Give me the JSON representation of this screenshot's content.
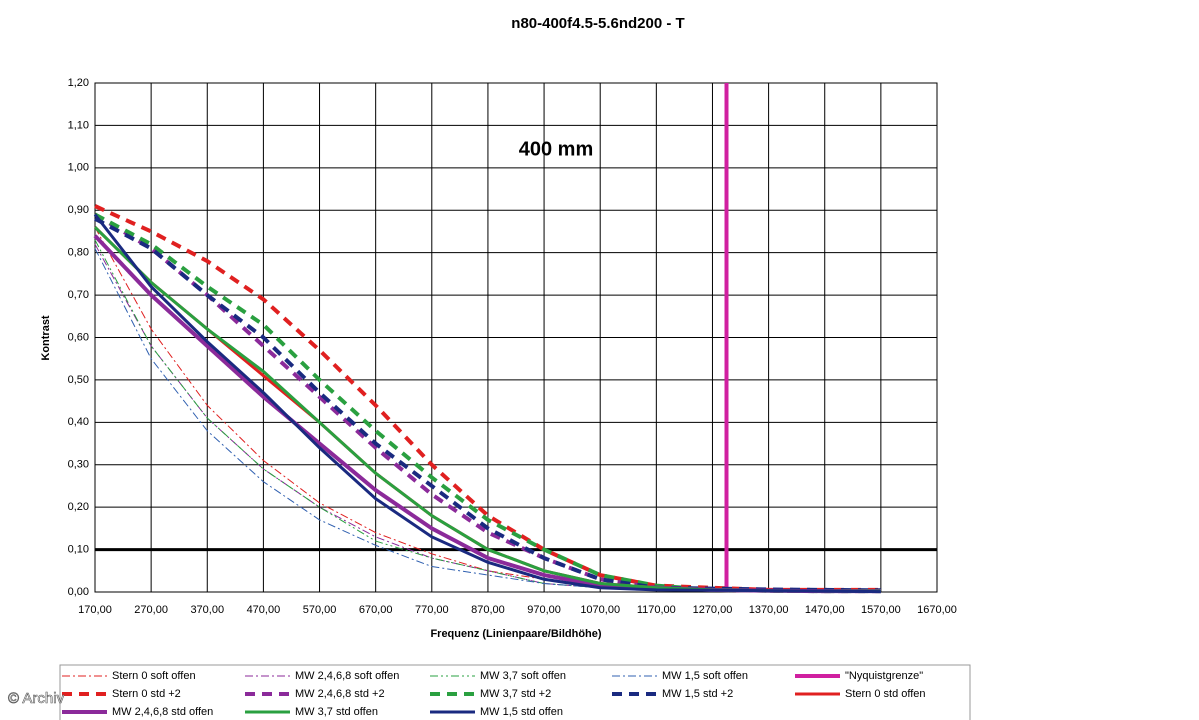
{
  "chart_data": {
    "type": "line",
    "title": "n80-400f4.5-5.6nd200 - T",
    "annotation": "400 mm",
    "x_label": "Frequenz (Linienpaare/Bildhöhe)",
    "y_label": "Kontrast",
    "watermark": "© Archiv",
    "x": [
      170,
      270,
      370,
      470,
      570,
      670,
      770,
      870,
      970,
      1070,
      1170,
      1270,
      1370,
      1470,
      1570
    ],
    "xlim": [
      170,
      1670
    ],
    "ylim": [
      0,
      1.2
    ],
    "xticks": [
      {
        "value": 170,
        "label": "170,00"
      },
      {
        "value": 270,
        "label": "270,00"
      },
      {
        "value": 370,
        "label": "370,00"
      },
      {
        "value": 470,
        "label": "470,00"
      },
      {
        "value": 570,
        "label": "570,00"
      },
      {
        "value": 670,
        "label": "670,00"
      },
      {
        "value": 770,
        "label": "770,00"
      },
      {
        "value": 870,
        "label": "870,00"
      },
      {
        "value": 970,
        "label": "970,00"
      },
      {
        "value": 1070,
        "label": "1070,00"
      },
      {
        "value": 1170,
        "label": "1170,00"
      },
      {
        "value": 1270,
        "label": "1270,00"
      },
      {
        "value": 1370,
        "label": "1370,00"
      },
      {
        "value": 1470,
        "label": "1470,00"
      },
      {
        "value": 1570,
        "label": "1570,00"
      },
      {
        "value": 1670,
        "label": "1670,00"
      }
    ],
    "yticks": [
      {
        "value": 0,
        "label": "0,00"
      },
      {
        "value": 0.1,
        "label": "0,10"
      },
      {
        "value": 0.2,
        "label": "0,20"
      },
      {
        "value": 0.3,
        "label": "0,30"
      },
      {
        "value": 0.4,
        "label": "0,40"
      },
      {
        "value": 0.5,
        "label": "0,50"
      },
      {
        "value": 0.6,
        "label": "0,60"
      },
      {
        "value": 0.7,
        "label": "0,70"
      },
      {
        "value": 0.8,
        "label": "0,80"
      },
      {
        "value": 0.9,
        "label": "0,90"
      },
      {
        "value": 1.0,
        "label": "1,00"
      },
      {
        "value": 1.1,
        "label": "1,10"
      },
      {
        "value": 1.2,
        "label": "1,20"
      }
    ],
    "grid": true,
    "hline": {
      "value": 0.1,
      "color": "#000000"
    },
    "series": [
      {
        "name": "Stern 0 soft offen",
        "color": "#e02020",
        "dash": "dashdot",
        "width": 1,
        "values": [
          0.86,
          0.62,
          0.44,
          0.31,
          0.21,
          0.14,
          0.09,
          0.05,
          0.03,
          0.01,
          0.005,
          0.003,
          0.002,
          0.001,
          0.001
        ]
      },
      {
        "name": "MW 2,4,6,8 soft offen",
        "color": "#8b2a9a",
        "dash": "dashdot",
        "width": 1,
        "values": [
          0.82,
          0.58,
          0.41,
          0.29,
          0.2,
          0.13,
          0.08,
          0.05,
          0.02,
          0.01,
          0.005,
          0.003,
          0.002,
          0.001,
          0.001
        ]
      },
      {
        "name": "MW 3,7 soft offen",
        "color": "#2aa040",
        "dash": "dashdotdot",
        "width": 1,
        "values": [
          0.83,
          0.58,
          0.41,
          0.29,
          0.2,
          0.12,
          0.08,
          0.05,
          0.02,
          0.01,
          0.005,
          0.003,
          0.002,
          0.001,
          0.001
        ]
      },
      {
        "name": "MW 1,5 soft offen",
        "color": "#3060b0",
        "dash": "dashdot",
        "width": 1,
        "values": [
          0.81,
          0.55,
          0.38,
          0.26,
          0.17,
          0.11,
          0.06,
          0.04,
          0.02,
          0.01,
          0.005,
          0.003,
          0.002,
          0.001,
          0.001
        ]
      },
      {
        "name": "\"Nyquistgrenze\"",
        "color": "#d020a0",
        "dash": "solid",
        "width": 4,
        "x": [
          1295,
          1295
        ],
        "values": [
          0,
          1.2
        ]
      },
      {
        "name": "Stern 0 std +2",
        "color": "#e02020",
        "dash": "dash",
        "width": 4,
        "values": [
          0.91,
          0.85,
          0.78,
          0.69,
          0.57,
          0.44,
          0.3,
          0.18,
          0.1,
          0.04,
          0.015,
          0.01,
          0.005,
          0.005,
          0.005
        ]
      },
      {
        "name": "MW 2,4,6,8 std +2",
        "color": "#8b2a9a",
        "dash": "dash",
        "width": 4,
        "values": [
          0.89,
          0.81,
          0.7,
          0.58,
          0.46,
          0.34,
          0.23,
          0.14,
          0.08,
          0.03,
          0.01,
          0.005,
          0.003,
          0.002,
          0.002
        ]
      },
      {
        "name": "MW 3,7 std +2",
        "color": "#2aa040",
        "dash": "dash",
        "width": 4,
        "values": [
          0.89,
          0.82,
          0.72,
          0.63,
          0.5,
          0.38,
          0.27,
          0.17,
          0.1,
          0.04,
          0.015,
          0.005,
          0.003,
          0.002,
          0.002
        ]
      },
      {
        "name": "MW 1,5 std +2",
        "color": "#1a2a80",
        "dash": "dash",
        "width": 4,
        "values": [
          0.88,
          0.81,
          0.7,
          0.6,
          0.47,
          0.35,
          0.25,
          0.15,
          0.08,
          0.03,
          0.01,
          0.008,
          0.006,
          0.005,
          0.004
        ]
      },
      {
        "name": "Stern 0 std offen",
        "color": "#e02020",
        "dash": "solid",
        "width": 3,
        "values": [
          0.86,
          0.73,
          0.62,
          0.51,
          0.4,
          0.28,
          0.18,
          0.1,
          0.05,
          0.02,
          0.01,
          0.005,
          0.003,
          0.002,
          0.002
        ]
      },
      {
        "name": "MW 2,4,6,8 std offen",
        "color": "#8b2a9a",
        "dash": "solid",
        "width": 4,
        "values": [
          0.84,
          0.7,
          0.58,
          0.46,
          0.35,
          0.24,
          0.15,
          0.08,
          0.04,
          0.015,
          0.01,
          0.005,
          0.003,
          0.002,
          0.002
        ]
      },
      {
        "name": "MW 3,7 std offen",
        "color": "#2aa040",
        "dash": "solid",
        "width": 3,
        "values": [
          0.86,
          0.73,
          0.62,
          0.52,
          0.4,
          0.28,
          0.18,
          0.1,
          0.05,
          0.02,
          0.01,
          0.005,
          0.003,
          0.002,
          0.002
        ]
      },
      {
        "name": "MW 1,5 std offen",
        "color": "#1a2a80",
        "dash": "solid",
        "width": 3,
        "values": [
          0.89,
          0.72,
          0.59,
          0.47,
          0.34,
          0.22,
          0.13,
          0.07,
          0.03,
          0.01,
          0.005,
          0.004,
          0.003,
          0.002,
          0.001
        ]
      }
    ]
  }
}
